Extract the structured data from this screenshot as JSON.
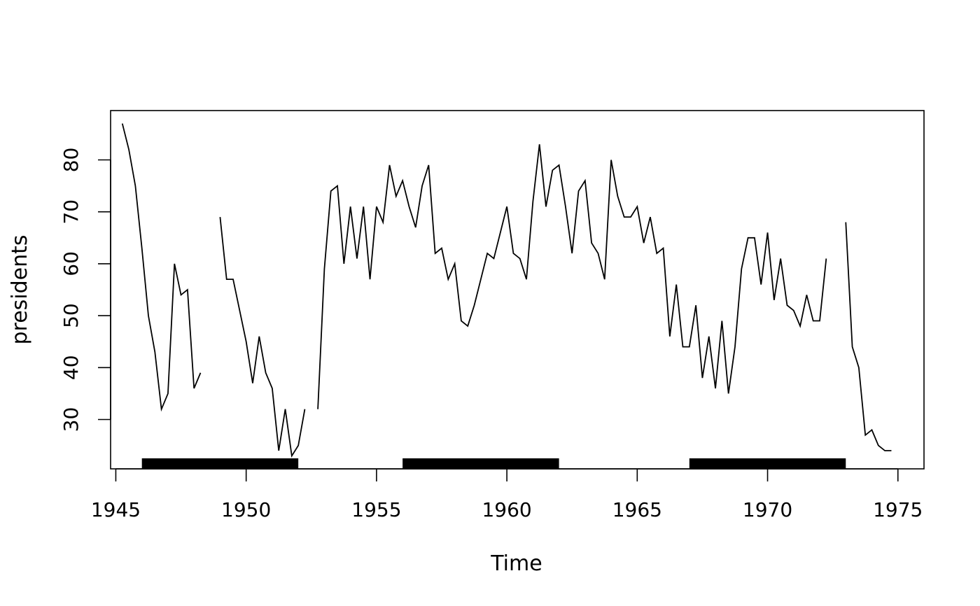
{
  "chart_data": {
    "type": "line",
    "title": "",
    "xlabel": "Time",
    "ylabel": "presidents",
    "xlim": [
      1944.8,
      1976.0
    ],
    "ylim": [
      20.5,
      89.5
    ],
    "x_ticks": [
      1945,
      1950,
      1955,
      1960,
      1965,
      1970,
      1975
    ],
    "y_ticks": [
      30,
      40,
      50,
      60,
      70,
      80
    ],
    "x_tick_labels": [
      "1945",
      "1950",
      "1955",
      "1960",
      "1965",
      "1970",
      "1975"
    ],
    "y_tick_labels": [
      "30",
      "40",
      "50",
      "60",
      "70",
      "80"
    ],
    "grid": false,
    "series": [
      {
        "start": 1945.25,
        "step": 0.25,
        "values": [
          87,
          82,
          75,
          63,
          50,
          43,
          32,
          35,
          60,
          54,
          55,
          36,
          39,
          null,
          null,
          69,
          57,
          57,
          51,
          45,
          37,
          46,
          39,
          36,
          24,
          32,
          23,
          25,
          32,
          null,
          32,
          59,
          74,
          75,
          60,
          71,
          61,
          71,
          57,
          71,
          68,
          79,
          73,
          76,
          71,
          67,
          75,
          79,
          62,
          63,
          57,
          60,
          49,
          48,
          52,
          57,
          62,
          61,
          66,
          71,
          62,
          61,
          57,
          72,
          83,
          71,
          78,
          79,
          71,
          62,
          74,
          76,
          64,
          62,
          57,
          80,
          73,
          69,
          69,
          71,
          64,
          69,
          62,
          63,
          46,
          56,
          44,
          44,
          52,
          38,
          46,
          36,
          49,
          35,
          44,
          59,
          65,
          65,
          56,
          66,
          53,
          61,
          52,
          51,
          48,
          54,
          49,
          49,
          61,
          null,
          null,
          68,
          44,
          40,
          27,
          28,
          25,
          24,
          24
        ]
      }
    ],
    "bands": [
      {
        "from": 1946.0,
        "to": 1952.0
      },
      {
        "from": 1956.0,
        "to": 1962.0
      },
      {
        "from": 1967.0,
        "to": 1973.0
      }
    ]
  }
}
